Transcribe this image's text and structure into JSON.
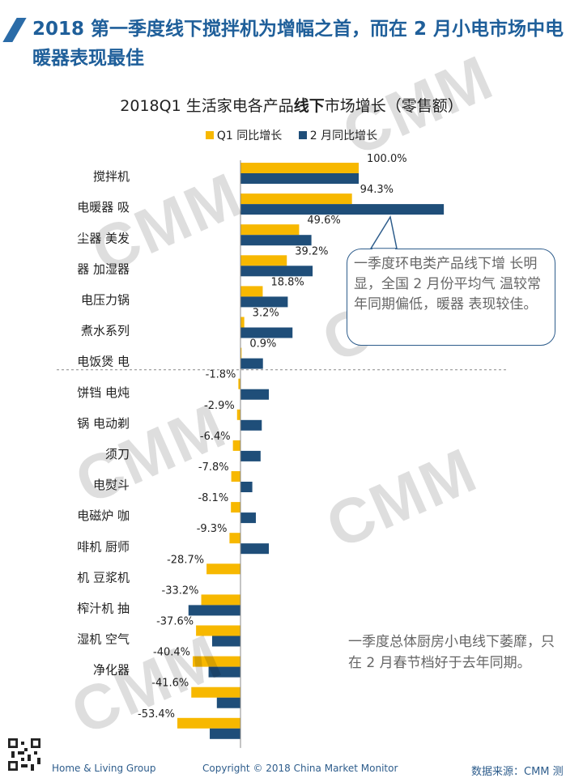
{
  "header": {
    "title": "2018 第一季度线下搅拌机为增幅之首，而在 2 月小电市场中电暖器表现最佳"
  },
  "chart_data": {
    "type": "bar",
    "orientation": "horizontal",
    "title_pre": "2018Q1 生活家电各产品",
    "title_bold": "线下",
    "title_post": "市场增长（零售额）",
    "categories": [
      "搅拌机",
      "电暖器 吸",
      "尘器 美发",
      "器 加湿器",
      "电压力锅",
      "煮水系列",
      "电饭煲 电",
      "饼铛 电炖",
      "锅 电动剃",
      "须刀",
      "电熨斗",
      "电磁炉 咖",
      "啡机 厨师",
      "机 豆浆机",
      "榨汁机 抽",
      "湿机 空气",
      "净化器",
      "",
      ""
    ],
    "series": [
      {
        "name": "Q1 同比增长",
        "color": "#f7b800",
        "values": [
          100.0,
          94.3,
          49.6,
          39.2,
          18.8,
          3.2,
          0.9,
          -1.8,
          -2.9,
          -6.4,
          -7.8,
          -8.1,
          -9.3,
          -28.7,
          -33.2,
          -37.6,
          -40.4,
          -41.6,
          -53.4
        ],
        "labels": [
          "100.0%",
          "94.3%",
          "49.6%",
          "39.2%",
          "18.8%",
          "3.2%",
          "0.9%",
          "-1.8%",
          "-2.9%",
          "-6.4%",
          "-7.8%",
          "-8.1%",
          "-9.3%",
          "-28.7%",
          "-33.2%",
          "-37.6%",
          "-40.4%",
          "-41.6%",
          "-53.4%"
        ]
      },
      {
        "name": "2 月同比增长",
        "color": "#1f4e79",
        "values": [
          100,
          172,
          60,
          61,
          40,
          44,
          19,
          24,
          18,
          17,
          10,
          13,
          24,
          0,
          -44,
          -24,
          -27,
          -20,
          -26
        ]
      }
    ],
    "xlim": [
      -60,
      175
    ]
  },
  "callout": {
    "text": "一季度环电类产品线下增 长明显，全国 2 月份平均气 温较常年同期偏低，暖器 表现较佳。"
  },
  "note": {
    "text": "一季度总体厨房小电线下萎靡，只在 2 月春节档好于去年同期。"
  },
  "watermark": "CMM",
  "footer": {
    "left": "Home & Living Group",
    "center": "Copyright © 2018 China Market Monitor",
    "right": "数据来源：CMM 测"
  }
}
